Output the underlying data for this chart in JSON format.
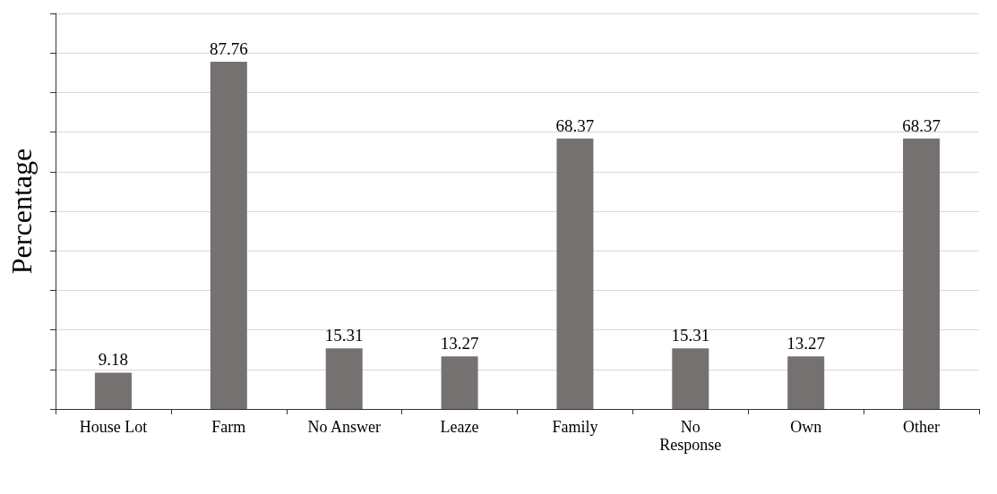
{
  "chart_data": {
    "type": "bar",
    "ylabel": "Percentage",
    "categories": [
      "House Lot",
      "Farm",
      "No Answer",
      "Leaze",
      "Family",
      "No\nResponse",
      "Own",
      "Other"
    ],
    "values": [
      9.18,
      87.76,
      15.31,
      13.27,
      68.37,
      15.31,
      13.27,
      68.37
    ],
    "color": "#767171",
    "data_labels": true,
    "grid": "y",
    "ylim": [
      0,
      100
    ],
    "yticks": [
      {
        "value": 0,
        "label": null
      },
      {
        "value": 10,
        "label": null
      },
      {
        "value": 20,
        "label": null
      },
      {
        "value": 30,
        "label": null
      },
      {
        "value": 40,
        "label": null
      },
      {
        "value": 50,
        "label": null
      },
      {
        "value": 60,
        "label": null
      },
      {
        "value": 70,
        "label": null
      },
      {
        "value": 80,
        "label": null
      },
      {
        "value": 90,
        "label": null
      },
      {
        "value": 100,
        "label": null
      }
    ]
  }
}
